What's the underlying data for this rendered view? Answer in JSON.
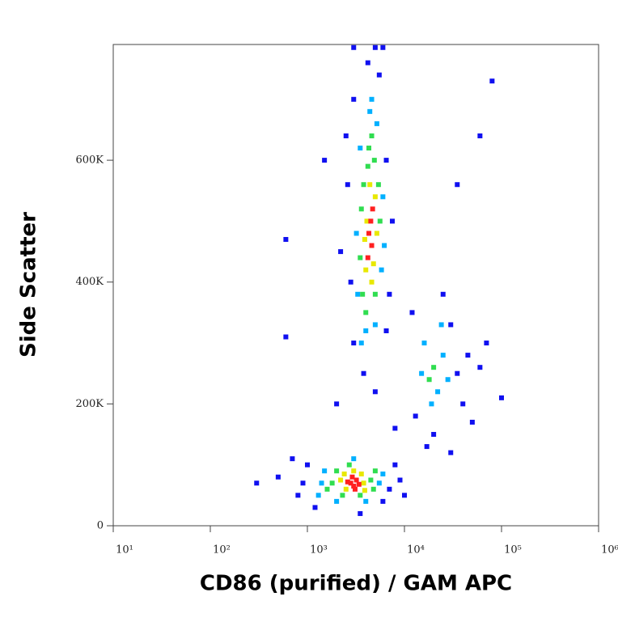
{
  "chart_data": {
    "type": "scatter",
    "x_label": "CD86 (purified) / GAM APC",
    "y_label": "Side Scatter",
    "x_scale": "log",
    "xlim": [
      10,
      1000000
    ],
    "xticks": [
      {
        "value": 10,
        "label": "10¹"
      },
      {
        "value": 100,
        "label": "10²"
      },
      {
        "value": 1000,
        "label": "10³"
      },
      {
        "value": 10000,
        "label": "10⁴"
      },
      {
        "value": 100000,
        "label": "10⁵"
      },
      {
        "value": 1000000,
        "label": "10⁶"
      }
    ],
    "ylim": [
      0,
      790000
    ],
    "yticks": [
      0,
      {
        "value": 200000,
        "label": "200K"
      },
      {
        "value": 400000,
        "label": "400K"
      },
      {
        "value": 600000,
        "label": "600K"
      }
    ],
    "series": [
      {
        "color": "#1010f0",
        "x": [
          900,
          800,
          1000,
          7000,
          8000,
          1200,
          6000,
          500,
          300,
          700,
          9000,
          3500,
          2800,
          2600,
          6500,
          7000,
          3000,
          5500,
          4200,
          3000,
          6500,
          2500,
          7500,
          2200,
          3800,
          5000,
          12000,
          30000,
          35000,
          40000,
          13000,
          20000,
          45000,
          60000,
          25000,
          17000,
          70000,
          50000,
          30000,
          600,
          600,
          1500,
          35000,
          80000,
          60000,
          100000,
          2000,
          8000,
          10000,
          3000,
          5000,
          6000
        ],
        "y": [
          70000,
          50000,
          100000,
          60000,
          100000,
          30000,
          40000,
          80000,
          70000,
          110000,
          75000,
          20000,
          400000,
          560000,
          600000,
          380000,
          700000,
          740000,
          760000,
          300000,
          320000,
          640000,
          500000,
          450000,
          250000,
          220000,
          350000,
          330000,
          250000,
          200000,
          180000,
          150000,
          280000,
          260000,
          380000,
          130000,
          300000,
          170000,
          120000,
          470000,
          310000,
          600000,
          560000,
          730000,
          640000,
          210000,
          200000,
          160000,
          50000,
          785000,
          785000,
          785000
        ]
      },
      {
        "color": "#00b0ff",
        "x": [
          1400,
          5500,
          1500,
          6000,
          2000,
          4000,
          3000,
          1300,
          3300,
          3500,
          5200,
          4400,
          6000,
          3200,
          5800,
          4000,
          5000,
          4600,
          3600,
          6200,
          16000,
          22000,
          25000,
          19000,
          24000,
          15000,
          28000
        ],
        "y": [
          70000,
          70000,
          90000,
          85000,
          40000,
          40000,
          110000,
          50000,
          380000,
          620000,
          660000,
          680000,
          540000,
          480000,
          420000,
          320000,
          330000,
          700000,
          300000,
          460000,
          300000,
          220000,
          280000,
          200000,
          330000,
          250000,
          240000
        ]
      },
      {
        "color": "#30dd50",
        "x": [
          1800,
          4500,
          2000,
          4800,
          2700,
          3500,
          1600,
          5000,
          2300,
          3700,
          4900,
          4300,
          5400,
          3600,
          3800,
          4000,
          5000,
          5600,
          3500,
          4600,
          4200,
          20000,
          18000
        ],
        "y": [
          70000,
          75000,
          90000,
          60000,
          100000,
          50000,
          60000,
          90000,
          50000,
          380000,
          600000,
          620000,
          560000,
          520000,
          560000,
          350000,
          380000,
          500000,
          440000,
          640000,
          590000,
          260000,
          240000
        ]
      },
      {
        "color": "#e8e800",
        "x": [
          2200,
          3800,
          2500,
          3600,
          3000,
          2400,
          3900,
          4000,
          5000,
          4400,
          4800,
          4100,
          4600,
          5200,
          3900
        ],
        "y": [
          75000,
          70000,
          60000,
          85000,
          90000,
          85000,
          58000,
          420000,
          540000,
          560000,
          430000,
          500000,
          400000,
          480000,
          470000
        ]
      },
      {
        "color": "#ff2020",
        "x": [
          2800,
          3000,
          3200,
          2600,
          3400,
          2900,
          3100,
          4300,
          4600,
          4500,
          4200,
          4700
        ],
        "y": [
          70000,
          65000,
          75000,
          72000,
          68000,
          80000,
          60000,
          480000,
          460000,
          500000,
          440000,
          520000
        ]
      }
    ]
  }
}
